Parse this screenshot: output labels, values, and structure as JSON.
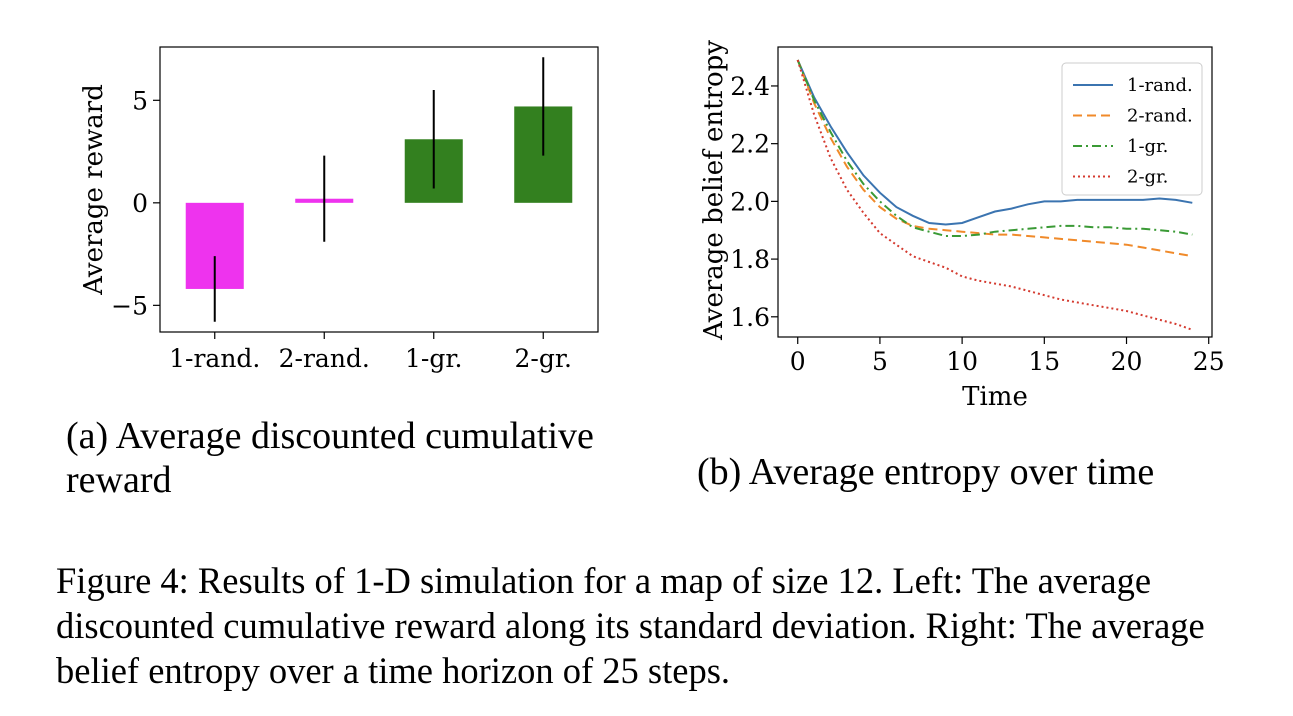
{
  "chart_data": [
    {
      "type": "bar",
      "ylabel": "Average reward",
      "categories": [
        "1-rand.",
        "2-rand.",
        "1-gr.",
        "2-gr."
      ],
      "values": [
        -4.2,
        0.2,
        3.1,
        4.7
      ],
      "error": [
        1.6,
        2.1,
        2.4,
        2.4
      ],
      "colors": [
        "#ee33ee",
        "#ee33ee",
        "#33801f",
        "#33801f"
      ],
      "ylim": [
        -6.3,
        7.6
      ],
      "yticks": [
        -5,
        0,
        5
      ],
      "ytick_labels": [
        "−5",
        "0",
        "5"
      ]
    },
    {
      "type": "line",
      "xlabel": "Time",
      "ylabel": "Average belief entropy",
      "xlim": [
        -1.2,
        25.2
      ],
      "ylim": [
        1.53,
        2.535
      ],
      "xticks": [
        0,
        5,
        10,
        15,
        20,
        25
      ],
      "xtick_labels": [
        "0",
        "5",
        "10",
        "15",
        "20",
        "25"
      ],
      "yticks": [
        1.6,
        1.8,
        2.0,
        2.2,
        2.4
      ],
      "ytick_labels": [
        "1.6",
        "1.8",
        "2.0",
        "2.2",
        "2.4"
      ],
      "legend_position": "top-right",
      "x": [
        0,
        1,
        2,
        3,
        4,
        5,
        6,
        7,
        8,
        9,
        10,
        11,
        12,
        13,
        14,
        15,
        16,
        17,
        18,
        19,
        20,
        21,
        22,
        23,
        24
      ],
      "series": [
        {
          "name": "1-rand.",
          "color": "#3b74b0",
          "dash": "solid",
          "values": [
            2.49,
            2.36,
            2.26,
            2.17,
            2.09,
            2.03,
            1.98,
            1.95,
            1.925,
            1.92,
            1.925,
            1.945,
            1.965,
            1.975,
            1.99,
            2.0,
            2.0,
            2.005,
            2.005,
            2.005,
            2.005,
            2.005,
            2.01,
            2.005,
            1.995
          ]
        },
        {
          "name": "2-rand.",
          "color": "#f08a2a",
          "dash": "dashed",
          "values": [
            2.49,
            2.34,
            2.22,
            2.12,
            2.04,
            1.98,
            1.94,
            1.915,
            1.905,
            1.9,
            1.895,
            1.89,
            1.885,
            1.885,
            1.88,
            1.875,
            1.87,
            1.865,
            1.86,
            1.855,
            1.85,
            1.84,
            1.83,
            1.82,
            1.81
          ]
        },
        {
          "name": "1-gr.",
          "color": "#3a9a35",
          "dash": "dashdot",
          "values": [
            2.49,
            2.35,
            2.24,
            2.14,
            2.06,
            2.0,
            1.95,
            1.91,
            1.895,
            1.88,
            1.88,
            1.885,
            1.895,
            1.9,
            1.905,
            1.91,
            1.915,
            1.915,
            1.91,
            1.91,
            1.905,
            1.905,
            1.9,
            1.895,
            1.885
          ]
        },
        {
          "name": "2-gr.",
          "color": "#d43a2f",
          "dash": "dotted",
          "values": [
            2.49,
            2.3,
            2.15,
            2.04,
            1.96,
            1.89,
            1.85,
            1.81,
            1.79,
            1.77,
            1.74,
            1.725,
            1.715,
            1.705,
            1.69,
            1.675,
            1.66,
            1.65,
            1.64,
            1.63,
            1.62,
            1.605,
            1.59,
            1.575,
            1.555
          ]
        }
      ]
    }
  ],
  "captions": {
    "a": "(a) Average discounted cumulative reward",
    "b": "(b) Average entropy over time",
    "figure": "Figure 4: Results of 1-D simulation for a map of size 12. Left: The average discounted cumulative reward along its standard deviation. Right: The average belief entropy over a time horizon of 25 steps."
  }
}
